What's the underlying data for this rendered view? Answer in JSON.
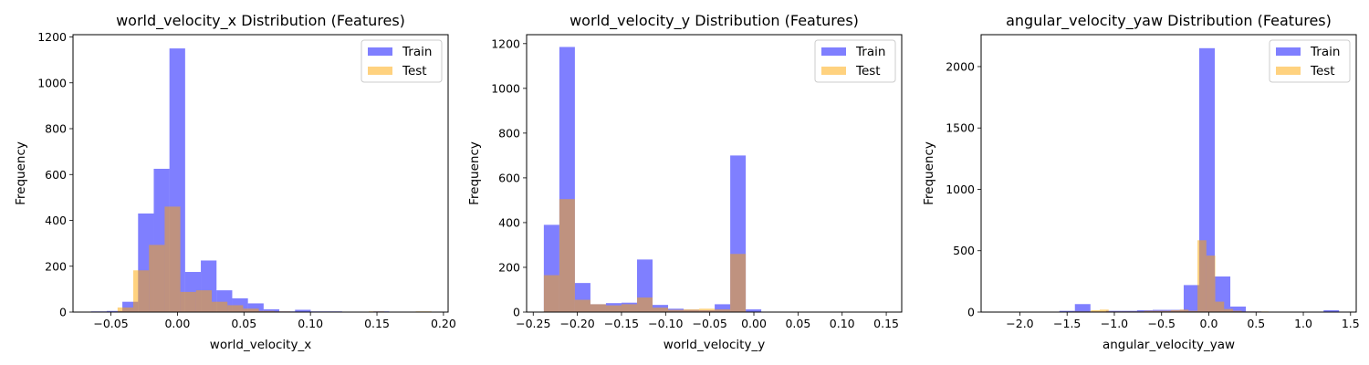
{
  "colors": {
    "train": "#0000ff",
    "test": "#ffa500",
    "axis": "#000000",
    "legend_border": "#cccccc"
  },
  "bar_alpha": 0.5,
  "chart_data": [
    {
      "type": "bar",
      "title": "world_velocity_x Distribution (Features)",
      "xlabel": "world_velocity_x",
      "ylabel": "Frequency",
      "xlim": [
        -0.0785,
        0.2035
      ],
      "ylim": [
        0,
        1210
      ],
      "xticks": [
        -0.05,
        0.0,
        0.05,
        0.1,
        0.15,
        0.2
      ],
      "xtick_labels": [
        "−0.05",
        "0.00",
        "0.05",
        "0.10",
        "0.15",
        "0.20"
      ],
      "yticks": [
        0,
        200,
        400,
        600,
        800,
        1000,
        1200
      ],
      "ytick_labels": [
        "0",
        "200",
        "400",
        "600",
        "800",
        "1000",
        "1200"
      ],
      "grid": false,
      "legend": {
        "position": "upper right",
        "entries": [
          "Train",
          "Test"
        ]
      },
      "series": [
        {
          "name": "Train",
          "bin_start": -0.065,
          "bin_width": 0.0118,
          "values": [
            3,
            5,
            45,
            430,
            625,
            1150,
            175,
            225,
            95,
            60,
            38,
            12,
            3,
            10,
            3,
            3,
            0,
            2,
            3,
            0,
            0,
            0
          ]
        },
        {
          "name": "Test",
          "bin_start": -0.045,
          "bin_width": 0.0118,
          "values": [
            20,
            182,
            293,
            460,
            88,
            95,
            45,
            30,
            15,
            5,
            3,
            2,
            2,
            0,
            0,
            1,
            3,
            0,
            2,
            3
          ]
        }
      ]
    },
    {
      "type": "bar",
      "title": "world_velocity_y Distribution (Features)",
      "xlabel": "world_velocity_y",
      "ylabel": "Frequency",
      "xlim": [
        -0.2575,
        0.1675
      ],
      "ylim": [
        0,
        1240
      ],
      "xticks": [
        -0.25,
        -0.2,
        -0.15,
        -0.1,
        -0.05,
        0.0,
        0.05,
        0.1,
        0.15
      ],
      "xtick_labels": [
        "−0.25",
        "−0.20",
        "−0.15",
        "−0.10",
        "−0.05",
        "0.00",
        "0.05",
        "0.10",
        "0.15"
      ],
      "yticks": [
        0,
        200,
        400,
        600,
        800,
        1000,
        1200
      ],
      "ytick_labels": [
        "0",
        "200",
        "400",
        "600",
        "800",
        "1000",
        "1200"
      ],
      "grid": false,
      "legend": {
        "position": "upper right",
        "entries": [
          "Train",
          "Test"
        ]
      },
      "series": [
        {
          "name": "Train",
          "bin_start": -0.238,
          "bin_width": 0.0176,
          "values": [
            390,
            1185,
            130,
            35,
            40,
            42,
            235,
            32,
            15,
            10,
            8,
            35,
            700,
            12,
            2,
            2,
            2,
            2,
            2,
            2,
            2,
            2
          ]
        },
        {
          "name": "Test",
          "bin_start": -0.238,
          "bin_width": 0.0176,
          "values": [
            165,
            505,
            55,
            35,
            30,
            35,
            65,
            20,
            10,
            12,
            15,
            12,
            260,
            2,
            2,
            2,
            2,
            2,
            2,
            2,
            2,
            2
          ]
        }
      ]
    },
    {
      "type": "bar",
      "title": "angular_velocity_yaw Distribution (Features)",
      "xlabel": "angular_velocity_yaw",
      "ylabel": "Frequency",
      "xlim": [
        -2.41,
        1.56
      ],
      "ylim": [
        0,
        2260
      ],
      "xticks": [
        -2.0,
        -1.5,
        -1.0,
        -0.5,
        0.0,
        0.5,
        1.0,
        1.5
      ],
      "xtick_labels": [
        "−2.0",
        "−1.5",
        "−1.0",
        "−0.5",
        "0.0",
        "0.5",
        "1.0",
        "1.5"
      ],
      "yticks": [
        0,
        500,
        1000,
        1500,
        2000
      ],
      "ytick_labels": [
        "0",
        "500",
        "1000",
        "1500",
        "2000"
      ],
      "grid": false,
      "legend": {
        "position": "upper right",
        "entries": [
          "Train",
          "Test"
        ]
      },
      "series": [
        {
          "name": "Train",
          "bin_start": -2.24,
          "bin_width": 0.1645,
          "values": [
            3,
            3,
            3,
            3,
            10,
            65,
            5,
            10,
            10,
            15,
            18,
            18,
            220,
            2150,
            290,
            45,
            5,
            3,
            3,
            3,
            3,
            15
          ]
        },
        {
          "name": "Test",
          "bin_start": -2.0,
          "bin_width": 0.094,
          "values": [
            3,
            3,
            3,
            3,
            3,
            3,
            5,
            5,
            15,
            20,
            5,
            5,
            5,
            5,
            10,
            10,
            10,
            15,
            20,
            10,
            585,
            460,
            85,
            25,
            10,
            5,
            5,
            5,
            3
          ]
        }
      ]
    }
  ]
}
